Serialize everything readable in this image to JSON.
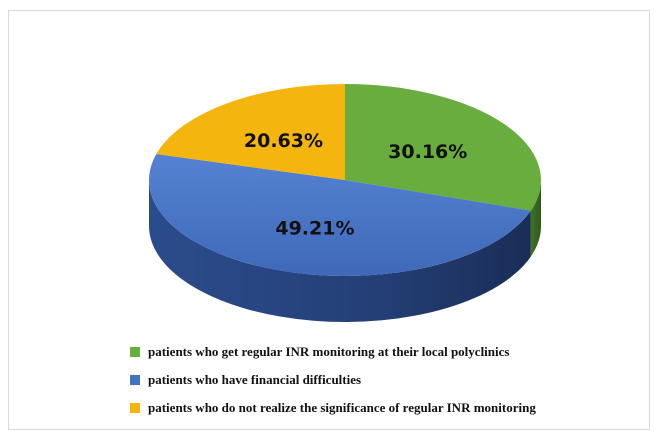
{
  "chart_data": {
    "type": "pie",
    "title": "",
    "slices": [
      {
        "label": "patients who get regular INR monitoring at their local polyclinics",
        "value": 30.16,
        "value_label": "30.16%",
        "color": "#6aad3f"
      },
      {
        "label": "patients who have financial difficulties",
        "value": 49.21,
        "value_label": "49.21%",
        "color": "#4472c4"
      },
      {
        "label": "patients who do not realize the significance of regular INR monitoring",
        "value": 20.63,
        "value_label": "20.63%",
        "color": "#f4b60e"
      }
    ],
    "legend_position": "bottom",
    "style": "3d"
  }
}
